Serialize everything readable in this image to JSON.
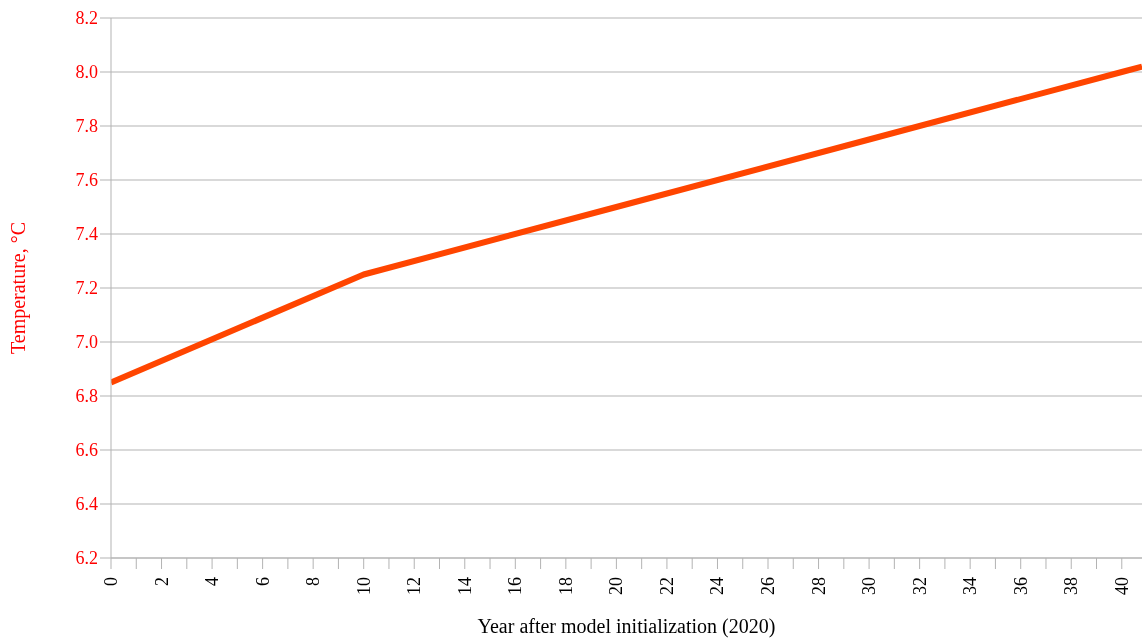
{
  "chart_data": {
    "type": "line",
    "xlabel": "Year after model initialization (2020)",
    "ylabel": "Temperature, °C",
    "x": [
      0,
      10,
      20,
      30,
      40,
      40.8
    ],
    "series": [
      {
        "color": "#ff4500",
        "values": [
          6.85,
          7.25,
          7.5,
          7.75,
          8.0,
          8.02
        ]
      }
    ],
    "xlim": [
      0,
      40.8
    ],
    "xticks": [
      0,
      {
        "value": 1,
        "label": null
      },
      2,
      {
        "value": 3,
        "label": null
      },
      4,
      {
        "value": 5,
        "label": null
      },
      6,
      {
        "value": 7,
        "label": null
      },
      8,
      {
        "value": 9,
        "label": null
      },
      10,
      {
        "value": 11,
        "label": null
      },
      12,
      {
        "value": 13,
        "label": null
      },
      14,
      {
        "value": 15,
        "label": null
      },
      16,
      {
        "value": 17,
        "label": null
      },
      18,
      {
        "value": 19,
        "label": null
      },
      20,
      {
        "value": 21,
        "label": null
      },
      22,
      {
        "value": 23,
        "label": null
      },
      24,
      {
        "value": 25,
        "label": null
      },
      26,
      {
        "value": 27,
        "label": null
      },
      28,
      {
        "value": 29,
        "label": null
      },
      30,
      {
        "value": 31,
        "label": null
      },
      32,
      {
        "value": 33,
        "label": null
      },
      34,
      {
        "value": 35,
        "label": null
      },
      36,
      {
        "value": 37,
        "label": null
      },
      38,
      {
        "value": 39,
        "label": null
      },
      40
    ],
    "ylim": [
      6.2,
      8.2
    ],
    "yticks": [
      {
        "value": 6.2,
        "label": "6.2"
      },
      {
        "value": 6.4,
        "label": "6.4"
      },
      {
        "value": 6.6,
        "label": "6.6"
      },
      {
        "value": 6.8,
        "label": "6.8"
      },
      {
        "value": 7.0,
        "label": "7.0"
      },
      {
        "value": 7.2,
        "label": "7.2"
      },
      {
        "value": 7.4,
        "label": "7.4"
      },
      {
        "value": 7.6,
        "label": "7.6"
      },
      {
        "value": 7.8,
        "label": "7.8"
      },
      {
        "value": 8.0,
        "label": "8.0"
      },
      {
        "value": 8.2,
        "label": "8.2"
      }
    ],
    "grid": "y",
    "marker": "none",
    "line_style": "solid"
  }
}
